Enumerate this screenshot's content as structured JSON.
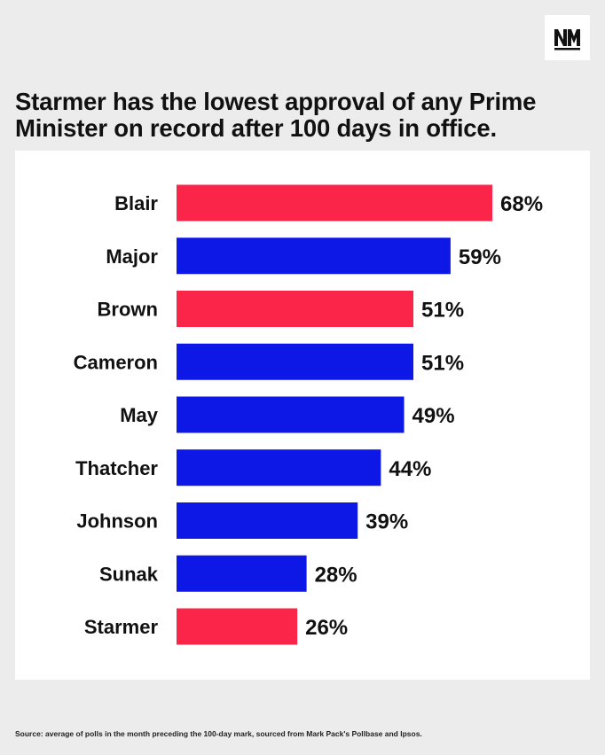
{
  "brand": {
    "logo_icon": "nm-logo-icon"
  },
  "headline": {
    "line1": "Starmer has the lowest approval of any Prime",
    "line2": "Minister on record after 100 days in office."
  },
  "colors": {
    "labour": "#fa2548",
    "conservative": "#0d17e6"
  },
  "chart_data": {
    "type": "bar",
    "orientation": "horizontal",
    "categories": [
      "Blair",
      "Major",
      "Brown",
      "Cameron",
      "May",
      "Thatcher",
      "Johnson",
      "Sunak",
      "Starmer"
    ],
    "values": [
      68,
      59,
      51,
      51,
      49,
      44,
      39,
      28,
      26
    ],
    "value_labels": [
      "68%",
      "59%",
      "51%",
      "51%",
      "49%",
      "44%",
      "39%",
      "28%",
      "26%"
    ],
    "bar_colors": [
      "#fa2548",
      "#0d17e6",
      "#fa2548",
      "#0d17e6",
      "#0d17e6",
      "#0d17e6",
      "#0d17e6",
      "#0d17e6",
      "#fa2548"
    ],
    "unit": "%",
    "xlim": [
      0,
      68
    ],
    "grid": false
  },
  "source_text": "Source: average of polls in the month preceding the 100-day mark, sourced from Mark Pack's Pollbase and Ipsos."
}
